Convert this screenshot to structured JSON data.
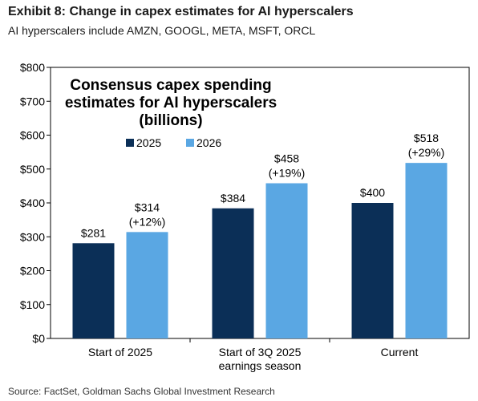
{
  "header": {
    "title": "Exhibit 8: Change in capex estimates for AI hyperscalers",
    "subtitle": "AI hyperscalers include AMZN, GOOGL, META, MSFT, ORCL"
  },
  "footer": {
    "source": "Source: FactSet, Goldman Sachs Global Investment Research"
  },
  "chart_data": {
    "type": "bar",
    "title_lines": [
      "Consensus capex spending",
      "estimates for AI hyperscalers",
      "(billions)"
    ],
    "categories": [
      [
        "Start of 2025"
      ],
      [
        "Start of 3Q 2025",
        "earnings season"
      ],
      [
        "Current"
      ]
    ],
    "series": [
      {
        "name": "2025",
        "color": "#0b2f57",
        "values": [
          281,
          384,
          400
        ],
        "labels": [
          [
            "$281"
          ],
          [
            "$384"
          ],
          [
            "$400"
          ]
        ]
      },
      {
        "name": "2026",
        "color": "#5aa7e3",
        "values": [
          314,
          458,
          518
        ],
        "labels": [
          [
            "$314",
            "(+12%)"
          ],
          [
            "$458",
            "(+19%)"
          ],
          [
            "$518",
            "(+29%)"
          ]
        ]
      }
    ],
    "ylim": [
      0,
      800
    ],
    "yticks": [
      0,
      100,
      200,
      300,
      400,
      500,
      600,
      700,
      800
    ],
    "ytick_labels": [
      "$0",
      "$100",
      "$200",
      "$300",
      "$400",
      "$500",
      "$600",
      "$700",
      "$800"
    ],
    "grid": false,
    "legend_position": "top-center"
  }
}
